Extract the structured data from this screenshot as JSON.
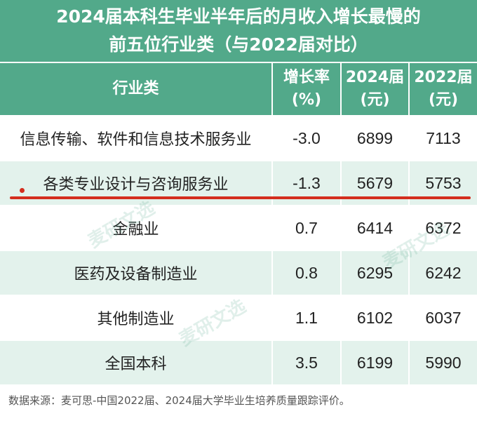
{
  "title": {
    "line1": "2024届本科生毕业半年后的月收入增长最慢的",
    "line2": "前五位行业类（与2022届对比）"
  },
  "table": {
    "headers": [
      {
        "line1": "行业类",
        "line2": ""
      },
      {
        "line1": "增长率",
        "line2": "(%)"
      },
      {
        "line1": "2024届",
        "line2": "(元)"
      },
      {
        "line1": "2022届",
        "line2": "(元)"
      }
    ],
    "rows": [
      [
        "信息传输、软件和信息技术服务业",
        "-3.0",
        "6899",
        "7113"
      ],
      [
        "各类专业设计与咨询服务业",
        "-1.3",
        "5679",
        "5753"
      ],
      [
        "金融业",
        "0.7",
        "6414",
        "6372"
      ],
      [
        "医药及设备制造业",
        "0.8",
        "6295",
        "6242"
      ],
      [
        "其他制造业",
        "1.1",
        "6102",
        "6037"
      ],
      [
        "全国本科",
        "3.5",
        "6199",
        "5990"
      ]
    ]
  },
  "footnote": "数据来源：麦可思-中国2022届、2024届大学毕业生培养质量跟踪评价。",
  "watermark": "麦研文选",
  "colors": {
    "header_bg": "#52a98a",
    "alt_row_bg": "#e3f2ec",
    "highlight_line": "#d42e1e"
  }
}
